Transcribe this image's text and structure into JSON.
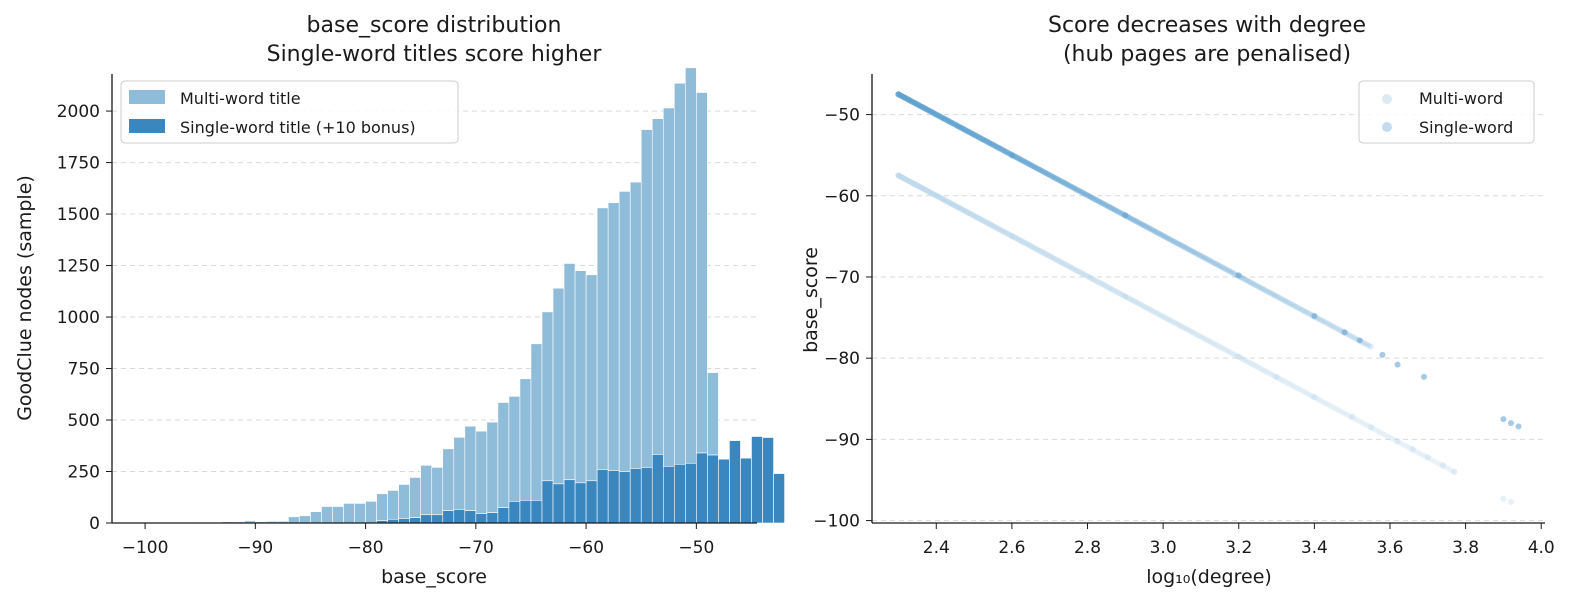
{
  "chart_data": [
    {
      "type": "bar",
      "subtype": "histogram",
      "stacked": true,
      "title": "base_score distribution\nSingle-word titles score higher",
      "title_lines": [
        "base_score distribution",
        "Single-word titles score higher"
      ],
      "xlabel": "base_score",
      "ylabel": "GoodClue nodes (sample)",
      "xlim": [
        -103,
        -44.5
      ],
      "ylim": [
        0,
        2180
      ],
      "xticks": [
        -100,
        -90,
        -80,
        -70,
        -60,
        -50
      ],
      "xtick_labels": [
        "−100",
        "−90",
        "−80",
        "−70",
        "−60",
        "−50"
      ],
      "yticks": [
        0,
        250,
        500,
        750,
        1000,
        1250,
        1500,
        1750,
        2000
      ],
      "grid": "y, dashed",
      "legend_position": "upper-left",
      "bin_start": -100,
      "bin_width": 1.0,
      "series": [
        {
          "name": "Multi-word title",
          "color": "#8fbcd9",
          "values": [
            2,
            2,
            2,
            2,
            3,
            3,
            4,
            6,
            6,
            10,
            6,
            8,
            8,
            30,
            35,
            55,
            80,
            80,
            95,
            95,
            105,
            130,
            140,
            165,
            195,
            240,
            230,
            300,
            350,
            410,
            400,
            440,
            510,
            510,
            590,
            760,
            820,
            950,
            1050,
            1030,
            1000,
            1270,
            1300,
            1360,
            1390,
            1640,
            1630,
            1740,
            1850,
            1920,
            1750,
            400,
            0,
            0,
            0,
            0,
            0,
            0,
            0,
            0,
            0,
            0,
            0,
            0,
            0,
            0,
            0,
            0,
            0,
            0,
            0,
            0,
            0
          ]
        },
        {
          "name": "Single-word title (+10 bonus)",
          "color": "#3a87c0",
          "values": [
            0,
            0,
            0,
            0,
            0,
            0,
            0,
            0,
            0,
            0,
            0,
            0,
            0,
            0,
            0,
            0,
            0,
            0,
            0,
            0,
            0,
            12,
            18,
            22,
            26,
            40,
            40,
            60,
            66,
            60,
            46,
            50,
            75,
            105,
            110,
            110,
            205,
            190,
            210,
            195,
            205,
            260,
            255,
            250,
            265,
            270,
            333,
            275,
            285,
            290,
            340,
            330,
            310,
            400,
            315,
            420,
            415,
            240
          ]
        }
      ]
    },
    {
      "type": "scatter",
      "title": "Score decreases with degree\n(hub pages are penalised)",
      "title_lines": [
        "Score decreases with degree",
        "(hub pages are penalised)"
      ],
      "xlabel": "log₁₀(degree)",
      "ylabel": "base_score",
      "xlim": [
        2.23,
        4.01
      ],
      "ylim": [
        -100.3,
        -45
      ],
      "xticks": [
        2.4,
        2.6,
        2.8,
        3.0,
        3.2,
        3.4,
        3.6,
        3.8,
        4.0
      ],
      "xtick_labels": [
        "2.4",
        "2.6",
        "2.8",
        "3.0",
        "3.2",
        "3.4",
        "3.6",
        "3.8",
        "4.0"
      ],
      "yticks": [
        -100,
        -90,
        -80,
        -70,
        -60,
        -50
      ],
      "ytick_labels": [
        "−100",
        "−90",
        "−80",
        "−70",
        "−60",
        "−50"
      ],
      "grid": "y, dashed",
      "legend_position": "upper-right",
      "series": [
        {
          "name": "Multi-word",
          "color": "#b9d6ea",
          "trend": {
            "x": [
              2.3,
              3.77
            ],
            "y": [
              -57.5,
              -94
            ]
          },
          "points": [
            [
              2.3,
              -57.5
            ],
            [
              2.6,
              -65.0
            ],
            [
              2.9,
              -72.4
            ],
            [
              3.2,
              -79.8
            ],
            [
              3.3,
              -82.3
            ],
            [
              3.4,
              -84.8
            ],
            [
              3.5,
              -87.2
            ],
            [
              3.55,
              -88.5
            ],
            [
              3.62,
              -90.2
            ],
            [
              3.66,
              -91.2
            ],
            [
              3.7,
              -92.2
            ],
            [
              3.74,
              -93.2
            ],
            [
              3.77,
              -94.0
            ],
            [
              3.9,
              -97.3
            ],
            [
              3.92,
              -97.7
            ]
          ]
        },
        {
          "name": "Single-word",
          "color": "#5b9fcf",
          "trend": {
            "x": [
              2.3,
              3.55
            ],
            "y": [
              -47.5,
              -78.6
            ]
          },
          "points": [
            [
              2.3,
              -47.5
            ],
            [
              2.6,
              -55.0
            ],
            [
              2.9,
              -62.4
            ],
            [
              3.2,
              -69.8
            ],
            [
              3.4,
              -74.8
            ],
            [
              3.48,
              -76.8
            ],
            [
              3.52,
              -77.8
            ],
            [
              3.58,
              -79.6
            ],
            [
              3.62,
              -80.8
            ],
            [
              3.69,
              -82.3
            ],
            [
              3.9,
              -87.5
            ],
            [
              3.92,
              -88.0
            ],
            [
              3.94,
              -88.4
            ]
          ]
        }
      ]
    }
  ]
}
